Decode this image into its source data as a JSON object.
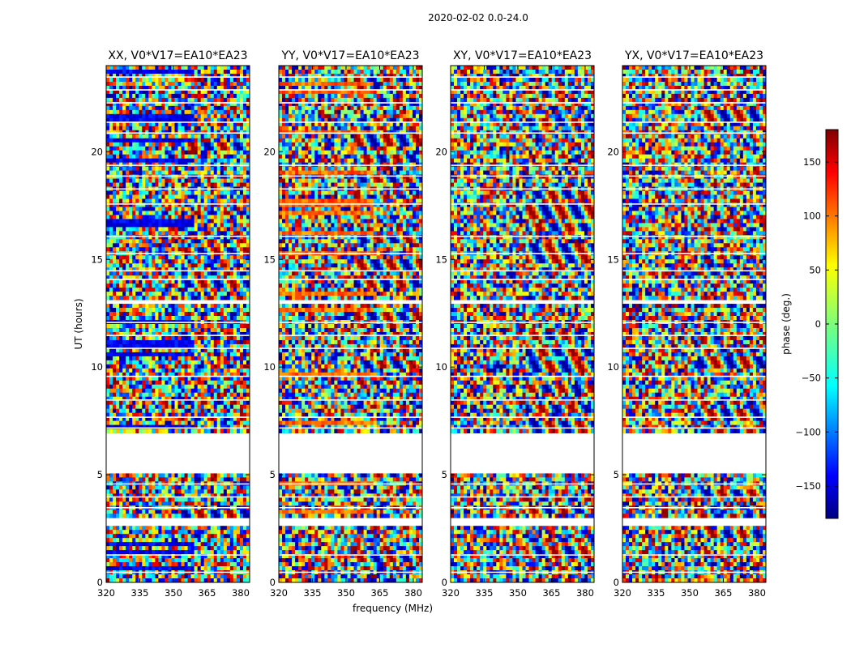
{
  "figure": {
    "suptitle": "2020-02-02 0.0-24.0"
  },
  "chart_data": {
    "type": "heatmap",
    "title": "2020-02-02 0.0-24.0",
    "xlabel": "frequency (MHz)",
    "ylabel": "UT (hours)",
    "xlim": [
      320,
      384
    ],
    "ylim": [
      0,
      24
    ],
    "xticks": [
      320,
      335,
      350,
      365,
      380
    ],
    "yticks": [
      0,
      5,
      10,
      15,
      20
    ],
    "panels": [
      {
        "title": "XX, V0*V17=EA10*EA23",
        "xlabel": ""
      },
      {
        "title": "YY, V0*V17=EA10*EA23",
        "xlabel": "frequency (MHz)"
      },
      {
        "title": "XY, V0*V17=EA10*EA23",
        "xlabel": ""
      },
      {
        "title": "YX, V0*V17=EA10*EA23",
        "xlabel": ""
      }
    ],
    "data_gaps_hours": [
      [
        5.0,
        6.9
      ],
      [
        2.7,
        3.0
      ],
      [
        13.0,
        13.2
      ]
    ],
    "colorbar": {
      "label": "phase (deg.)",
      "range": [
        -180,
        180
      ],
      "ticks": [
        -150,
        -100,
        -50,
        0,
        50,
        100,
        150
      ],
      "colormap": "jet"
    }
  }
}
